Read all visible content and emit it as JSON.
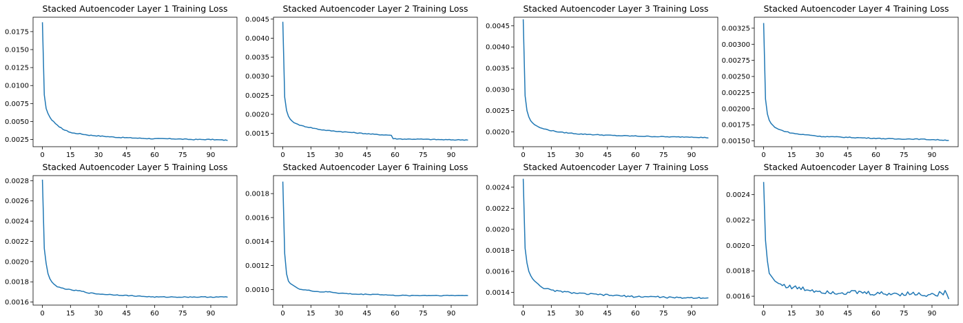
{
  "colors": {
    "series": "#1f77b4",
    "axis": "#000000",
    "background": "#ffffff"
  },
  "chart_data": [
    {
      "type": "line",
      "title": "Stacked Autoencoder Layer 1 Training Loss",
      "xlabel": "",
      "ylabel": "",
      "xlim": [
        -5,
        104
      ],
      "ylim": [
        0.0015,
        0.0195
      ],
      "xticks": [
        0,
        15,
        30,
        45,
        60,
        75,
        90
      ],
      "yticks": [
        "0.0025",
        "0.0050",
        "0.0075",
        "0.0100",
        "0.0125",
        "0.0150",
        "0.0175"
      ],
      "grid": false,
      "series": [
        {
          "points": [
            [
              0,
              0.0188
            ],
            [
              1,
              0.0087
            ],
            [
              2,
              0.0068
            ],
            [
              3,
              0.0061
            ],
            [
              4,
              0.0056
            ],
            [
              5,
              0.0052
            ],
            [
              6,
              0.005
            ],
            [
              7,
              0.0047
            ],
            [
              8,
              0.0045
            ],
            [
              9,
              0.0042
            ],
            [
              10,
              0.0041
            ],
            [
              12,
              0.0038
            ],
            [
              14,
              0.0036
            ],
            [
              16,
              0.0034
            ],
            [
              20,
              0.0033
            ],
            [
              25,
              0.0031
            ],
            [
              30,
              0.003
            ],
            [
              40,
              0.0028
            ],
            [
              50,
              0.0027
            ],
            [
              60,
              0.0026
            ],
            [
              70,
              0.0026
            ],
            [
              80,
              0.0025
            ],
            [
              90,
              0.0025
            ],
            [
              99,
              0.0024
            ]
          ]
        }
      ]
    },
    {
      "type": "line",
      "title": "Stacked Autoencoder Layer 2 Training Loss",
      "xlabel": "",
      "ylabel": "",
      "xlim": [
        -5,
        104
      ],
      "ylim": [
        0.00115,
        0.00455
      ],
      "xticks": [
        0,
        15,
        30,
        45,
        60,
        75,
        90
      ],
      "yticks": [
        "0.0015",
        "0.0020",
        "0.0025",
        "0.0030",
        "0.0035",
        "0.0040",
        "0.0045"
      ],
      "grid": false,
      "series": [
        {
          "points": [
            [
              0,
              0.00443
            ],
            [
              1,
              0.00245
            ],
            [
              2,
              0.0021
            ],
            [
              3,
              0.00195
            ],
            [
              4,
              0.00187
            ],
            [
              5,
              0.00182
            ],
            [
              6,
              0.00178
            ],
            [
              8,
              0.00174
            ],
            [
              10,
              0.0017
            ],
            [
              15,
              0.00165
            ],
            [
              20,
              0.0016
            ],
            [
              25,
              0.00157
            ],
            [
              30,
              0.00155
            ],
            [
              35,
              0.00153
            ],
            [
              40,
              0.00151
            ],
            [
              45,
              0.00149
            ],
            [
              50,
              0.00147
            ],
            [
              55,
              0.00146
            ],
            [
              58,
              0.00145
            ],
            [
              59,
              0.00136
            ],
            [
              65,
              0.00135
            ],
            [
              70,
              0.00135
            ],
            [
              80,
              0.00134
            ],
            [
              90,
              0.00133
            ],
            [
              99,
              0.00133
            ]
          ]
        }
      ]
    },
    {
      "type": "line",
      "title": "Stacked Autoencoder Layer 3 Training Loss",
      "xlabel": "",
      "ylabel": "",
      "xlim": [
        -5,
        104
      ],
      "ylim": [
        0.00165,
        0.0047
      ],
      "xticks": [
        0,
        15,
        30,
        45,
        60,
        75,
        90
      ],
      "yticks": [
        "0.0020",
        "0.0025",
        "0.0030",
        "0.0035",
        "0.0040",
        "0.0045"
      ],
      "grid": false,
      "series": [
        {
          "points": [
            [
              0,
              0.00465
            ],
            [
              1,
              0.00285
            ],
            [
              2,
              0.0025
            ],
            [
              3,
              0.00235
            ],
            [
              4,
              0.00226
            ],
            [
              5,
              0.00221
            ],
            [
              6,
              0.00217
            ],
            [
              8,
              0.00212
            ],
            [
              10,
              0.00208
            ],
            [
              15,
              0.00203
            ],
            [
              20,
              0.00199
            ],
            [
              25,
              0.00197
            ],
            [
              30,
              0.00195
            ],
            [
              40,
              0.00193
            ],
            [
              50,
              0.00191
            ],
            [
              60,
              0.0019
            ],
            [
              70,
              0.00189
            ],
            [
              80,
              0.00188
            ],
            [
              90,
              0.00188
            ],
            [
              99,
              0.00186
            ]
          ]
        }
      ]
    },
    {
      "type": "line",
      "title": "Stacked Autoencoder Layer 4 Training Loss",
      "xlabel": "",
      "ylabel": "",
      "xlim": [
        -5,
        104
      ],
      "ylim": [
        0.00141,
        0.00342
      ],
      "xticks": [
        0,
        15,
        30,
        45,
        60,
        75,
        90
      ],
      "yticks": [
        "0.00150",
        "0.00175",
        "0.00200",
        "0.00225",
        "0.00250",
        "0.00275",
        "0.00300",
        "0.00325"
      ],
      "grid": false,
      "series": [
        {
          "points": [
            [
              0,
              0.00333
            ],
            [
              1,
              0.00215
            ],
            [
              2,
              0.00192
            ],
            [
              3,
              0.00182
            ],
            [
              4,
              0.00177
            ],
            [
              5,
              0.00174
            ],
            [
              6,
              0.00171
            ],
            [
              8,
              0.00168
            ],
            [
              10,
              0.00166
            ],
            [
              15,
              0.00162
            ],
            [
              20,
              0.0016
            ],
            [
              25,
              0.00159
            ],
            [
              30,
              0.00157
            ],
            [
              40,
              0.00156
            ],
            [
              50,
              0.00155
            ],
            [
              60,
              0.00154
            ],
            [
              70,
              0.00153
            ],
            [
              80,
              0.00153
            ],
            [
              90,
              0.00152
            ],
            [
              99,
              0.00151
            ]
          ]
        }
      ]
    },
    {
      "type": "line",
      "title": "Stacked Autoencoder Layer 5 Training Loss",
      "xlabel": "",
      "ylabel": "",
      "xlim": [
        -5,
        104
      ],
      "ylim": [
        0.00157,
        0.00285
      ],
      "xticks": [
        0,
        15,
        30,
        45,
        60,
        75,
        90
      ],
      "yticks": [
        "0.0016",
        "0.0018",
        "0.0020",
        "0.0022",
        "0.0024",
        "0.0026",
        "0.0028"
      ],
      "grid": false,
      "series": [
        {
          "points": [
            [
              0,
              0.00281
            ],
            [
              1,
              0.00213
            ],
            [
              2,
              0.00198
            ],
            [
              3,
              0.00188
            ],
            [
              4,
              0.00183
            ],
            [
              5,
              0.0018
            ],
            [
              6,
              0.00178
            ],
            [
              8,
              0.00175
            ],
            [
              10,
              0.00174
            ],
            [
              15,
              0.00172
            ],
            [
              20,
              0.00171
            ],
            [
              25,
              0.00169
            ],
            [
              30,
              0.00168
            ],
            [
              40,
              0.00167
            ],
            [
              50,
              0.00166
            ],
            [
              60,
              0.00165
            ],
            [
              70,
              0.00165
            ],
            [
              80,
              0.00165
            ],
            [
              90,
              0.00165
            ],
            [
              99,
              0.00165
            ]
          ]
        }
      ]
    },
    {
      "type": "line",
      "title": "Stacked Autoencoder Layer 6 Training Loss",
      "xlabel": "",
      "ylabel": "",
      "xlim": [
        -5,
        104
      ],
      "ylim": [
        0.00087,
        0.00195
      ],
      "xticks": [
        0,
        15,
        30,
        45,
        60,
        75,
        90
      ],
      "yticks": [
        "0.0010",
        "0.0012",
        "0.0014",
        "0.0016",
        "0.0018"
      ],
      "grid": false,
      "series": [
        {
          "points": [
            [
              0,
              0.0019
            ],
            [
              1,
              0.0013
            ],
            [
              2,
              0.00113
            ],
            [
              3,
              0.00107
            ],
            [
              4,
              0.00105
            ],
            [
              5,
              0.00104
            ],
            [
              6,
              0.00103
            ],
            [
              8,
              0.00101
            ],
            [
              10,
              0.001
            ],
            [
              15,
              0.00099
            ],
            [
              20,
              0.00098
            ],
            [
              25,
              0.00098
            ],
            [
              30,
              0.00097
            ],
            [
              40,
              0.00096
            ],
            [
              50,
              0.00096
            ],
            [
              60,
              0.00095
            ],
            [
              70,
              0.00095
            ],
            [
              80,
              0.00095
            ],
            [
              90,
              0.00095
            ],
            [
              99,
              0.00095
            ]
          ]
        }
      ]
    },
    {
      "type": "line",
      "title": "Stacked Autoencoder Layer 7 Training Loss",
      "xlabel": "",
      "ylabel": "",
      "xlim": [
        -5,
        104
      ],
      "ylim": [
        0.00128,
        0.00251
      ],
      "xticks": [
        0,
        15,
        30,
        45,
        60,
        75,
        90
      ],
      "yticks": [
        "0.0014",
        "0.0016",
        "0.0018",
        "0.0020",
        "0.0022",
        "0.0024"
      ],
      "grid": false,
      "series": [
        {
          "points": [
            [
              0,
              0.00248
            ],
            [
              1,
              0.00182
            ],
            [
              2,
              0.00168
            ],
            [
              3,
              0.0016
            ],
            [
              4,
              0.00156
            ],
            [
              5,
              0.00153
            ],
            [
              6,
              0.00151
            ],
            [
              8,
              0.00148
            ],
            [
              10,
              0.00145
            ],
            [
              15,
              0.00142
            ],
            [
              20,
              0.00141
            ],
            [
              25,
              0.0014
            ],
            [
              30,
              0.00139
            ],
            [
              40,
              0.00138
            ],
            [
              50,
              0.00137
            ],
            [
              60,
              0.00136
            ],
            [
              70,
              0.00136
            ],
            [
              80,
              0.00135
            ],
            [
              90,
              0.00135
            ],
            [
              99,
              0.00135
            ]
          ]
        }
      ]
    },
    {
      "type": "line",
      "title": "Stacked Autoencoder Layer 8 Training Loss",
      "xlabel": "",
      "ylabel": "",
      "xlim": [
        -5,
        104
      ],
      "ylim": [
        0.00153,
        0.00255
      ],
      "xticks": [
        0,
        15,
        30,
        45,
        60,
        75,
        90
      ],
      "yticks": [
        "0.0016",
        "0.0018",
        "0.0020",
        "0.0022",
        "0.0024"
      ],
      "grid": false,
      "series": [
        {
          "points": [
            [
              0,
              0.0025
            ],
            [
              1,
              0.00204
            ],
            [
              2,
              0.00188
            ],
            [
              3,
              0.00178
            ],
            [
              4,
              0.00176
            ],
            [
              5,
              0.00174
            ],
            [
              6,
              0.00172
            ],
            [
              8,
              0.0017
            ],
            [
              10,
              0.00169
            ],
            [
              15,
              0.00167
            ],
            [
              20,
              0.00166
            ],
            [
              25,
              0.00165
            ],
            [
              30,
              0.00164
            ],
            [
              40,
              0.00163
            ],
            [
              50,
              0.00163
            ],
            [
              60,
              0.00162
            ],
            [
              70,
              0.00162
            ],
            [
              80,
              0.00162
            ],
            [
              90,
              0.00161
            ],
            [
              98,
              0.00163
            ],
            [
              99,
              0.00158
            ]
          ]
        }
      ]
    }
  ]
}
